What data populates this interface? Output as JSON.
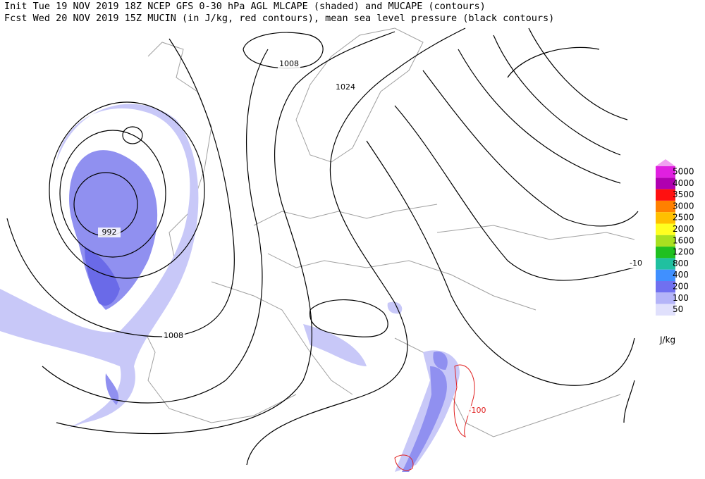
{
  "header": {
    "line1": "Init  Tue 19 NOV 2019 18Z  NCEP GFS 0-30 hPa AGL MLCAPE (shaded) and MUCAPE (contours)",
    "line2": "Fcst Wed 20 NOV 2019 15Z  MUCIN (in J/kg, red contours), mean sea level pressure (black contours)"
  },
  "contour_labels": [
    "1008",
    "1024",
    "992",
    "1008",
    "-100",
    "-10"
  ],
  "legend": {
    "levels": [
      "5000",
      "4000",
      "3500",
      "3000",
      "2500",
      "2000",
      "1600",
      "1200",
      "800",
      "400",
      "200",
      "100",
      "50"
    ],
    "colors": [
      "#e020e0",
      "#b000b0",
      "#ff1010",
      "#ff8000",
      "#ffc000",
      "#ffff20",
      "#a8e020",
      "#20c020",
      "#20c0a0",
      "#4090ff",
      "#7070f0",
      "#b4b4f8",
      "#e0e0fc"
    ],
    "unit": "J/kg"
  }
}
